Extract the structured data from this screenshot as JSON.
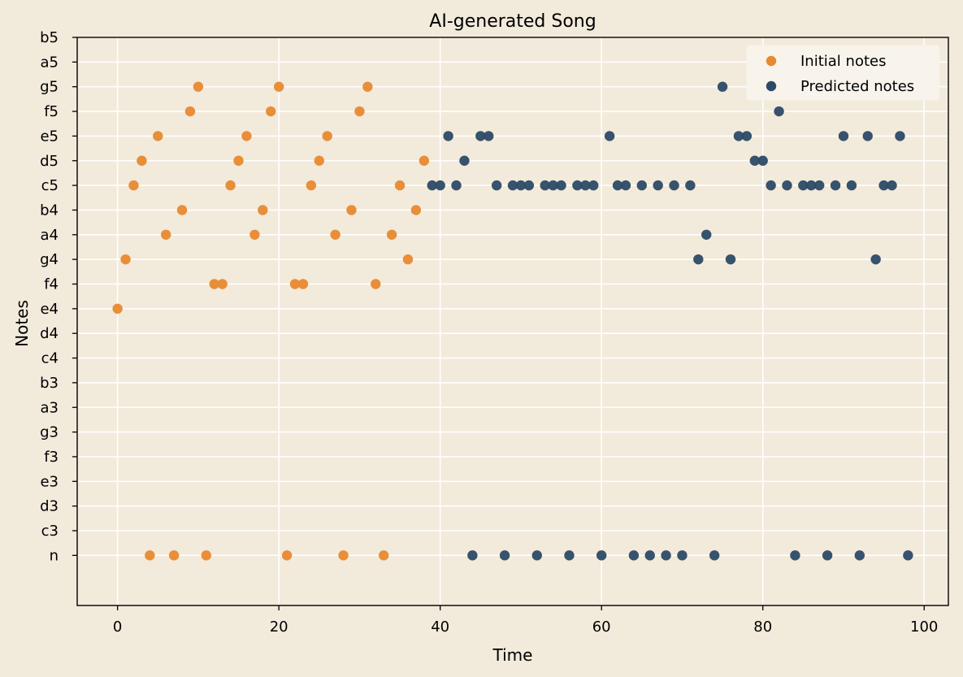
{
  "chart_data": {
    "type": "scatter",
    "title": "AI-generated Song",
    "xlabel": "Time",
    "ylabel": "Notes",
    "xlim": [
      -5,
      103
    ],
    "x_ticks": [
      0,
      20,
      40,
      60,
      80,
      100
    ],
    "y_categories": [
      "n",
      "c3",
      "d3",
      "e3",
      "f3",
      "g3",
      "a3",
      "b3",
      "c4",
      "d4",
      "e4",
      "f4",
      "g4",
      "a4",
      "b4",
      "c5",
      "d5",
      "e5",
      "f5",
      "g5",
      "a5",
      "b5"
    ],
    "grid": true,
    "legend_position": "top-right",
    "series": [
      {
        "name": "Initial notes",
        "color": "#e8892f",
        "points": [
          {
            "x": 0,
            "y": "e4"
          },
          {
            "x": 1,
            "y": "g4"
          },
          {
            "x": 2,
            "y": "c5"
          },
          {
            "x": 3,
            "y": "d5"
          },
          {
            "x": 4,
            "y": "n"
          },
          {
            "x": 5,
            "y": "e5"
          },
          {
            "x": 6,
            "y": "a4"
          },
          {
            "x": 7,
            "y": "n"
          },
          {
            "x": 8,
            "y": "b4"
          },
          {
            "x": 9,
            "y": "f5"
          },
          {
            "x": 10,
            "y": "g5"
          },
          {
            "x": 11,
            "y": "n"
          },
          {
            "x": 12,
            "y": "f4"
          },
          {
            "x": 13,
            "y": "f4"
          },
          {
            "x": 14,
            "y": "c5"
          },
          {
            "x": 15,
            "y": "d5"
          },
          {
            "x": 16,
            "y": "e5"
          },
          {
            "x": 17,
            "y": "a4"
          },
          {
            "x": 18,
            "y": "b4"
          },
          {
            "x": 19,
            "y": "f5"
          },
          {
            "x": 20,
            "y": "g5"
          },
          {
            "x": 21,
            "y": "n"
          },
          {
            "x": 22,
            "y": "f4"
          },
          {
            "x": 23,
            "y": "f4"
          },
          {
            "x": 24,
            "y": "c5"
          },
          {
            "x": 25,
            "y": "d5"
          },
          {
            "x": 26,
            "y": "e5"
          },
          {
            "x": 27,
            "y": "a4"
          },
          {
            "x": 28,
            "y": "n"
          },
          {
            "x": 29,
            "y": "b4"
          },
          {
            "x": 30,
            "y": "f5"
          },
          {
            "x": 31,
            "y": "g5"
          },
          {
            "x": 32,
            "y": "f4"
          },
          {
            "x": 33,
            "y": "n"
          },
          {
            "x": 34,
            "y": "a4"
          },
          {
            "x": 35,
            "y": "c5"
          },
          {
            "x": 36,
            "y": "g4"
          },
          {
            "x": 37,
            "y": "b4"
          },
          {
            "x": 38,
            "y": "d5"
          }
        ]
      },
      {
        "name": "Predicted notes",
        "color": "#2c4a66",
        "points": [
          {
            "x": 39,
            "y": "c5"
          },
          {
            "x": 40,
            "y": "c5"
          },
          {
            "x": 41,
            "y": "e5"
          },
          {
            "x": 42,
            "y": "c5"
          },
          {
            "x": 43,
            "y": "d5"
          },
          {
            "x": 44,
            "y": "n"
          },
          {
            "x": 45,
            "y": "e5"
          },
          {
            "x": 46,
            "y": "e5"
          },
          {
            "x": 47,
            "y": "c5"
          },
          {
            "x": 48,
            "y": "n"
          },
          {
            "x": 49,
            "y": "c5"
          },
          {
            "x": 50,
            "y": "c5"
          },
          {
            "x": 51,
            "y": "c5"
          },
          {
            "x": 52,
            "y": "n"
          },
          {
            "x": 53,
            "y": "c5"
          },
          {
            "x": 54,
            "y": "c5"
          },
          {
            "x": 55,
            "y": "c5"
          },
          {
            "x": 56,
            "y": "n"
          },
          {
            "x": 57,
            "y": "c5"
          },
          {
            "x": 58,
            "y": "c5"
          },
          {
            "x": 59,
            "y": "c5"
          },
          {
            "x": 60,
            "y": "n"
          },
          {
            "x": 61,
            "y": "e5"
          },
          {
            "x": 62,
            "y": "c5"
          },
          {
            "x": 63,
            "y": "c5"
          },
          {
            "x": 64,
            "y": "n"
          },
          {
            "x": 65,
            "y": "c5"
          },
          {
            "x": 66,
            "y": "n"
          },
          {
            "x": 67,
            "y": "c5"
          },
          {
            "x": 68,
            "y": "n"
          },
          {
            "x": 69,
            "y": "c5"
          },
          {
            "x": 70,
            "y": "n"
          },
          {
            "x": 71,
            "y": "c5"
          },
          {
            "x": 72,
            "y": "g4"
          },
          {
            "x": 73,
            "y": "a4"
          },
          {
            "x": 74,
            "y": "n"
          },
          {
            "x": 75,
            "y": "g5"
          },
          {
            "x": 76,
            "y": "g4"
          },
          {
            "x": 77,
            "y": "e5"
          },
          {
            "x": 78,
            "y": "e5"
          },
          {
            "x": 79,
            "y": "d5"
          },
          {
            "x": 80,
            "y": "d5"
          },
          {
            "x": 81,
            "y": "c5"
          },
          {
            "x": 82,
            "y": "f5"
          },
          {
            "x": 83,
            "y": "c5"
          },
          {
            "x": 84,
            "y": "n"
          },
          {
            "x": 85,
            "y": "c5"
          },
          {
            "x": 86,
            "y": "c5"
          },
          {
            "x": 87,
            "y": "c5"
          },
          {
            "x": 88,
            "y": "n"
          },
          {
            "x": 89,
            "y": "c5"
          },
          {
            "x": 90,
            "y": "e5"
          },
          {
            "x": 91,
            "y": "c5"
          },
          {
            "x": 92,
            "y": "n"
          },
          {
            "x": 93,
            "y": "e5"
          },
          {
            "x": 94,
            "y": "g4"
          },
          {
            "x": 95,
            "y": "c5"
          },
          {
            "x": 96,
            "y": "c5"
          },
          {
            "x": 97,
            "y": "e5"
          },
          {
            "x": 98,
            "y": "n"
          }
        ]
      }
    ]
  },
  "colors": {
    "background": "#f2eadb",
    "grid": "#ffffff",
    "axis": "#000000"
  }
}
